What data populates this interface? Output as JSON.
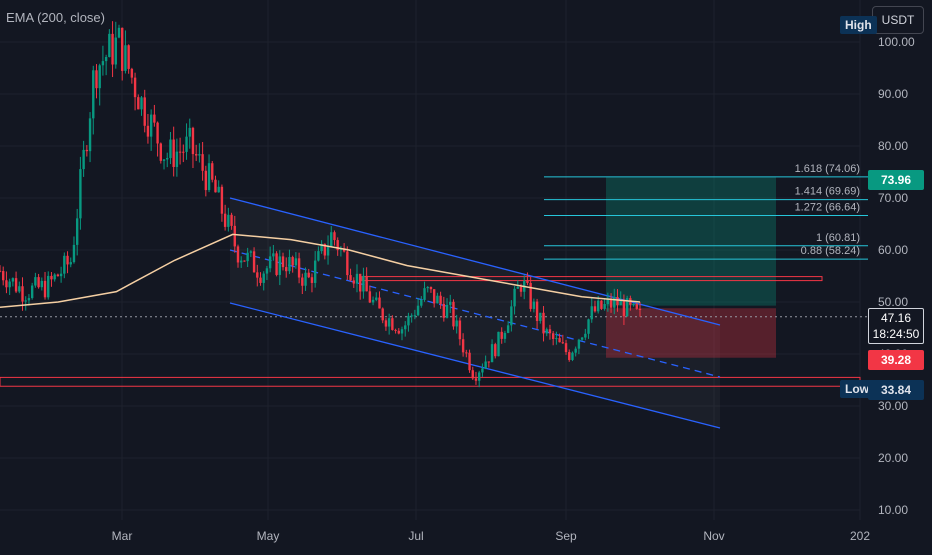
{
  "indicator_label": "EMA (200, close)",
  "currency_button": "USDT",
  "high_tag": "High",
  "low_tag": "Low",
  "low_value": "33.84",
  "current_price": "47.16",
  "countdown": "18:24:50",
  "stop_price": "39.28",
  "target_price": "73.96",
  "fib_labels": [
    "1.618 (74.06)",
    "1.414 (69.69)",
    "1.272 (66.64)",
    "1 (60.81)",
    "0.88 (58.24)"
  ],
  "colors": {
    "background": "#131722",
    "up": "#089981",
    "down": "#f23645",
    "ema": "#f5cfa3",
    "channel": "#2962ff",
    "fib": "#26c6da",
    "resistance": "#f23645"
  },
  "chart_data": {
    "type": "candlestick",
    "x_ticks": [
      "Mar",
      "May",
      "Jul",
      "Sep",
      "Nov",
      "202"
    ],
    "y_ticks": [
      "100.00",
      "90.00",
      "80.00",
      "70.00",
      "60.00",
      "50.00",
      "40.00",
      "30.00",
      "20.00",
      "10.00"
    ],
    "ylim": [
      8,
      104
    ],
    "series": [
      {
        "name": "EMA (200, close)",
        "values": [
          49,
          50,
          52,
          58,
          63,
          62,
          60,
          57,
          55,
          53,
          51,
          50
        ]
      }
    ],
    "price_path": [
      56,
      52,
      53,
      58,
      95,
      100,
      88,
      78,
      80,
      72,
      60,
      56,
      58,
      54,
      63,
      55,
      48,
      45,
      52,
      48,
      36,
      42,
      54,
      44,
      40,
      48,
      50,
      47
    ],
    "annotations": {
      "current": 47.16,
      "stop": 39.28,
      "target": 73.96,
      "low": 33.84,
      "resistance": 54.5,
      "fib_levels": [
        74.06,
        69.69,
        66.64,
        60.81,
        58.24
      ]
    }
  }
}
